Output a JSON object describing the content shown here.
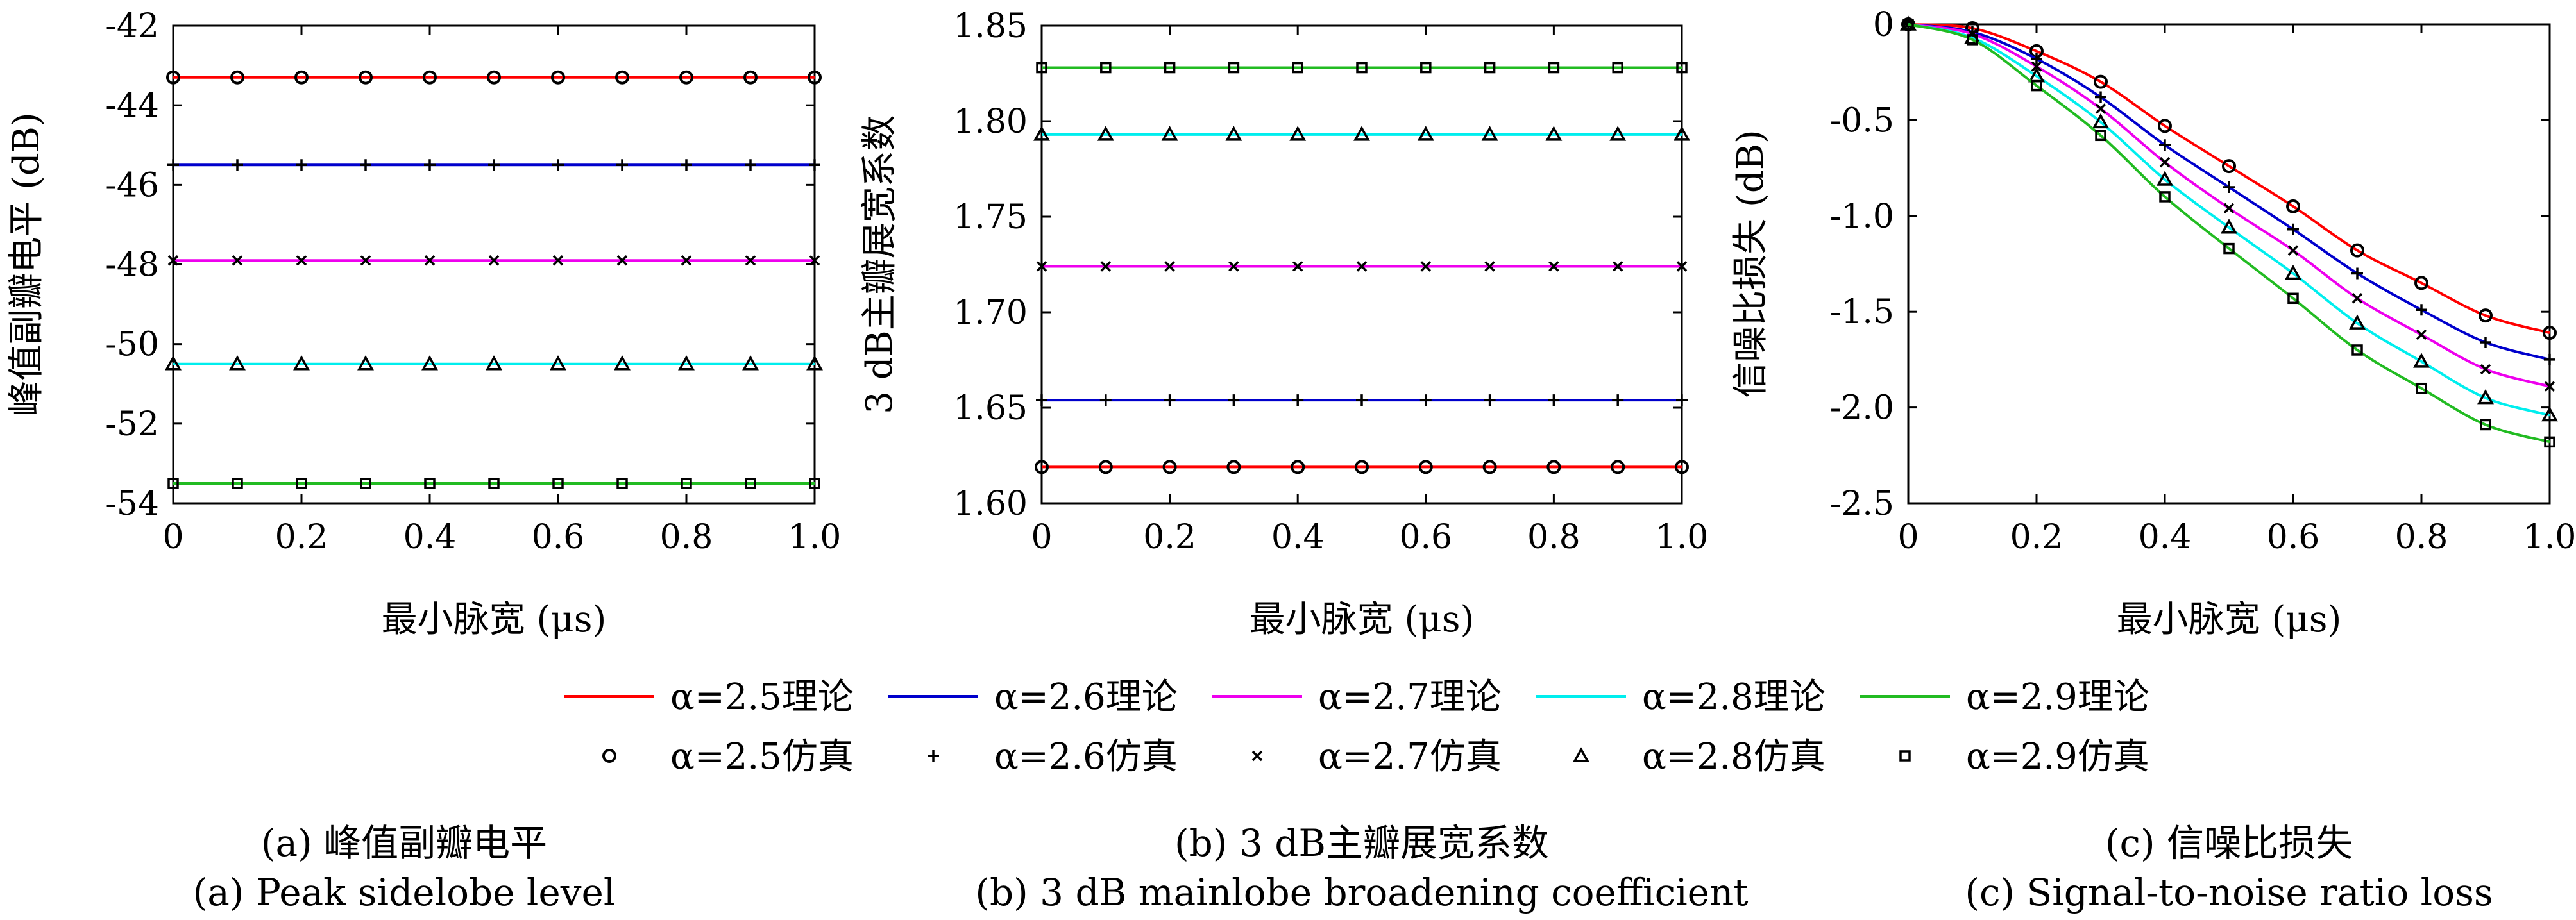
{
  "legend": {
    "theory": [
      "α=2.5理论",
      "α=2.6理论",
      "α=2.7理论",
      "α=2.8理论",
      "α=2.9理论"
    ],
    "sim": [
      "α=2.5仿真",
      "α=2.6仿真",
      "α=2.7仿真",
      "α=2.8仿真",
      "α=2.9仿真"
    ]
  },
  "series_colors": [
    "#ff0000",
    "#0000cc",
    "#ee00ee",
    "#00eeee",
    "#22bb22"
  ],
  "sim_markers": [
    "circle-icon",
    "plus-icon",
    "cross-icon",
    "triangle-icon",
    "square-icon"
  ],
  "chart_data": [
    {
      "type": "line",
      "caption_cn": "(a) 峰值副瓣电平",
      "caption_en": "(a) Peak sidelobe level",
      "xlabel": "最小脉宽 (μs)",
      "ylabel": "峰值副瓣电平 (dB)",
      "xlim": [
        0,
        1.0
      ],
      "ylim": [
        -54,
        -42
      ],
      "xticks": [
        "0",
        "0.2",
        "0.4",
        "0.6",
        "0.8",
        "1.0"
      ],
      "yticks": [
        "-42",
        "-44",
        "-46",
        "-48",
        "-50",
        "-52",
        "-54"
      ],
      "x": [
        0,
        0.1,
        0.2,
        0.3,
        0.4,
        0.5,
        0.6,
        0.7,
        0.8,
        0.9,
        1.0
      ],
      "series": [
        {
          "values": [
            -43.3,
            -43.3,
            -43.3,
            -43.3,
            -43.3,
            -43.3,
            -43.3,
            -43.3,
            -43.3,
            -43.3,
            -43.3
          ]
        },
        {
          "values": [
            -45.5,
            -45.5,
            -45.5,
            -45.5,
            -45.5,
            -45.5,
            -45.5,
            -45.5,
            -45.5,
            -45.5,
            -45.5
          ]
        },
        {
          "values": [
            -47.9,
            -47.9,
            -47.9,
            -47.9,
            -47.9,
            -47.9,
            -47.9,
            -47.9,
            -47.9,
            -47.9,
            -47.9
          ]
        },
        {
          "values": [
            -50.5,
            -50.5,
            -50.5,
            -50.5,
            -50.5,
            -50.5,
            -50.5,
            -50.5,
            -50.5,
            -50.5,
            -50.5
          ]
        },
        {
          "values": [
            -53.5,
            -53.5,
            -53.5,
            -53.5,
            -53.5,
            -53.5,
            -53.5,
            -53.5,
            -53.5,
            -53.5,
            -53.5
          ]
        }
      ]
    },
    {
      "type": "line",
      "caption_cn": "(b) 3 dB主瓣展宽系数",
      "caption_en": "(b) 3 dB mainlobe broadening coefficient",
      "xlabel": "最小脉宽 (μs)",
      "ylabel": "3 dB主瓣展宽系数",
      "xlim": [
        0,
        1.0
      ],
      "ylim": [
        1.6,
        1.85
      ],
      "xticks": [
        "0",
        "0.2",
        "0.4",
        "0.6",
        "0.8",
        "1.0"
      ],
      "yticks": [
        "1.85",
        "1.80",
        "1.75",
        "1.70",
        "1.65",
        "1.60"
      ],
      "x": [
        0,
        0.1,
        0.2,
        0.3,
        0.4,
        0.5,
        0.6,
        0.7,
        0.8,
        0.9,
        1.0
      ],
      "series": [
        {
          "values": [
            1.619,
            1.619,
            1.619,
            1.619,
            1.619,
            1.619,
            1.619,
            1.619,
            1.619,
            1.619,
            1.619
          ]
        },
        {
          "values": [
            1.654,
            1.654,
            1.654,
            1.654,
            1.654,
            1.654,
            1.654,
            1.654,
            1.654,
            1.654,
            1.654
          ]
        },
        {
          "values": [
            1.724,
            1.724,
            1.724,
            1.724,
            1.724,
            1.724,
            1.724,
            1.724,
            1.724,
            1.724,
            1.724
          ]
        },
        {
          "values": [
            1.793,
            1.793,
            1.793,
            1.793,
            1.793,
            1.793,
            1.793,
            1.793,
            1.793,
            1.793,
            1.793
          ]
        },
        {
          "values": [
            1.828,
            1.828,
            1.828,
            1.828,
            1.828,
            1.828,
            1.828,
            1.828,
            1.828,
            1.828,
            1.828
          ]
        }
      ]
    },
    {
      "type": "line",
      "caption_cn": "(c) 信噪比损失",
      "caption_en": "(c) Signal-to-noise ratio loss",
      "xlabel": "最小脉宽 (μs)",
      "ylabel": "信噪比损失 (dB)",
      "xlim": [
        0,
        1.0
      ],
      "ylim": [
        -2.5,
        0
      ],
      "xticks": [
        "0",
        "0.2",
        "0.4",
        "0.6",
        "0.8",
        "1.0"
      ],
      "yticks": [
        "0",
        "-0.5",
        "-1.0",
        "-1.5",
        "-2.0",
        "-2.5"
      ],
      "x": [
        0,
        0.1,
        0.2,
        0.3,
        0.4,
        0.5,
        0.6,
        0.7,
        0.8,
        0.9,
        1.0
      ],
      "series": [
        {
          "values": [
            0,
            -0.02,
            -0.14,
            -0.3,
            -0.53,
            -0.74,
            -0.95,
            -1.18,
            -1.35,
            -1.52,
            -1.61
          ]
        },
        {
          "values": [
            0,
            -0.04,
            -0.18,
            -0.38,
            -0.63,
            -0.85,
            -1.07,
            -1.3,
            -1.49,
            -1.66,
            -1.75
          ]
        },
        {
          "values": [
            0,
            -0.05,
            -0.22,
            -0.44,
            -0.72,
            -0.96,
            -1.18,
            -1.43,
            -1.62,
            -1.8,
            -1.89
          ]
        },
        {
          "values": [
            0,
            -0.07,
            -0.27,
            -0.51,
            -0.81,
            -1.06,
            -1.3,
            -1.56,
            -1.76,
            -1.95,
            -2.04
          ]
        },
        {
          "values": [
            0,
            -0.08,
            -0.32,
            -0.58,
            -0.9,
            -1.17,
            -1.43,
            -1.7,
            -1.9,
            -2.09,
            -2.18
          ]
        }
      ]
    }
  ]
}
